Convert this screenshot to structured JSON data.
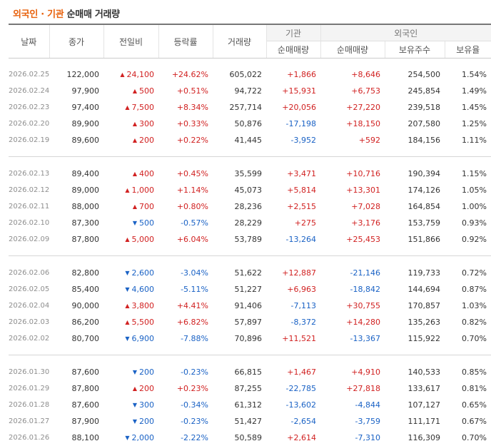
{
  "title": {
    "part1": "외국인 · 기관",
    "part2": "순매매 거래량"
  },
  "headers": {
    "date": "날짜",
    "close": "종가",
    "change": "전일비",
    "rate": "등락률",
    "volume": "거래량",
    "inst_group": "기관",
    "inst_net": "순매매량",
    "foreign_group": "외국인",
    "foreign_net": "순매매량",
    "foreign_hold": "보유주수",
    "foreign_ratio": "보유율"
  },
  "groups": [
    {
      "rows": [
        {
          "date": "2026.02.25",
          "close": "122,000",
          "dir": "up",
          "change": "24,100",
          "rate": "+24.62%",
          "volume": "605,022",
          "inst": "+1,866",
          "foreign": "+8,646",
          "hold": "254,500",
          "ratio": "1.54%"
        },
        {
          "date": "2026.02.24",
          "close": "97,900",
          "dir": "up",
          "change": "500",
          "rate": "+0.51%",
          "volume": "94,722",
          "inst": "+15,931",
          "foreign": "+6,753",
          "hold": "245,854",
          "ratio": "1.49%"
        },
        {
          "date": "2026.02.23",
          "close": "97,400",
          "dir": "up",
          "change": "7,500",
          "rate": "+8.34%",
          "volume": "257,714",
          "inst": "+20,056",
          "foreign": "+27,220",
          "hold": "239,518",
          "ratio": "1.45%"
        },
        {
          "date": "2026.02.20",
          "close": "89,900",
          "dir": "up",
          "change": "300",
          "rate": "+0.33%",
          "volume": "50,876",
          "inst": "-17,198",
          "foreign": "+18,150",
          "hold": "207,580",
          "ratio": "1.25%"
        },
        {
          "date": "2026.02.19",
          "close": "89,600",
          "dir": "up",
          "change": "200",
          "rate": "+0.22%",
          "volume": "41,445",
          "inst": "-3,952",
          "foreign": "+592",
          "hold": "184,156",
          "ratio": "1.11%"
        }
      ]
    },
    {
      "rows": [
        {
          "date": "2026.02.13",
          "close": "89,400",
          "dir": "up",
          "change": "400",
          "rate": "+0.45%",
          "volume": "35,599",
          "inst": "+3,471",
          "foreign": "+10,716",
          "hold": "190,394",
          "ratio": "1.15%"
        },
        {
          "date": "2026.02.12",
          "close": "89,000",
          "dir": "up",
          "change": "1,000",
          "rate": "+1.14%",
          "volume": "45,073",
          "inst": "+5,814",
          "foreign": "+13,301",
          "hold": "174,126",
          "ratio": "1.05%"
        },
        {
          "date": "2026.02.11",
          "close": "88,000",
          "dir": "up",
          "change": "700",
          "rate": "+0.80%",
          "volume": "28,236",
          "inst": "+2,515",
          "foreign": "+7,028",
          "hold": "164,854",
          "ratio": "1.00%"
        },
        {
          "date": "2026.02.10",
          "close": "87,300",
          "dir": "down",
          "change": "500",
          "rate": "-0.57%",
          "volume": "28,229",
          "inst": "+275",
          "foreign": "+3,176",
          "hold": "153,759",
          "ratio": "0.93%"
        },
        {
          "date": "2026.02.09",
          "close": "87,800",
          "dir": "up",
          "change": "5,000",
          "rate": "+6.04%",
          "volume": "53,789",
          "inst": "-13,264",
          "foreign": "+25,453",
          "hold": "151,866",
          "ratio": "0.92%"
        }
      ]
    },
    {
      "rows": [
        {
          "date": "2026.02.06",
          "close": "82,800",
          "dir": "down",
          "change": "2,600",
          "rate": "-3.04%",
          "volume": "51,622",
          "inst": "+12,887",
          "foreign": "-21,146",
          "hold": "119,733",
          "ratio": "0.72%"
        },
        {
          "date": "2026.02.05",
          "close": "85,400",
          "dir": "down",
          "change": "4,600",
          "rate": "-5.11%",
          "volume": "51,227",
          "inst": "+6,963",
          "foreign": "-18,842",
          "hold": "144,694",
          "ratio": "0.87%"
        },
        {
          "date": "2026.02.04",
          "close": "90,000",
          "dir": "up",
          "change": "3,800",
          "rate": "+4.41%",
          "volume": "91,406",
          "inst": "-7,113",
          "foreign": "+30,755",
          "hold": "170,857",
          "ratio": "1.03%"
        },
        {
          "date": "2026.02.03",
          "close": "86,200",
          "dir": "up",
          "change": "5,500",
          "rate": "+6.82%",
          "volume": "57,897",
          "inst": "-8,372",
          "foreign": "+14,280",
          "hold": "135,263",
          "ratio": "0.82%"
        },
        {
          "date": "2026.02.02",
          "close": "80,700",
          "dir": "down",
          "change": "6,900",
          "rate": "-7.88%",
          "volume": "70,896",
          "inst": "+11,521",
          "foreign": "-13,367",
          "hold": "115,922",
          "ratio": "0.70%"
        }
      ]
    },
    {
      "rows": [
        {
          "date": "2026.01.30",
          "close": "87,600",
          "dir": "down",
          "change": "200",
          "rate": "-0.23%",
          "volume": "66,815",
          "inst": "+1,467",
          "foreign": "+4,910",
          "hold": "140,533",
          "ratio": "0.85%"
        },
        {
          "date": "2026.01.29",
          "close": "87,800",
          "dir": "up",
          "change": "200",
          "rate": "+0.23%",
          "volume": "87,255",
          "inst": "-22,785",
          "foreign": "+27,818",
          "hold": "133,617",
          "ratio": "0.81%"
        },
        {
          "date": "2026.01.28",
          "close": "87,600",
          "dir": "down",
          "change": "300",
          "rate": "-0.34%",
          "volume": "61,312",
          "inst": "-13,602",
          "foreign": "-4,844",
          "hold": "107,127",
          "ratio": "0.65%"
        },
        {
          "date": "2026.01.27",
          "close": "87,900",
          "dir": "down",
          "change": "200",
          "rate": "-0.23%",
          "volume": "51,427",
          "inst": "-2,654",
          "foreign": "-3,759",
          "hold": "111,171",
          "ratio": "0.67%"
        },
        {
          "date": "2026.01.26",
          "close": "88,100",
          "dir": "down",
          "change": "2,000",
          "rate": "-2.22%",
          "volume": "50,589",
          "inst": "+2,614",
          "foreign": "-7,310",
          "hold": "116,309",
          "ratio": "0.70%"
        }
      ]
    }
  ],
  "colors": {
    "up": "#d12121",
    "down": "#1a62c5",
    "title_accent": "#e8620d"
  },
  "icons": {
    "up": "triangle-up-icon",
    "down": "triangle-down-icon"
  }
}
